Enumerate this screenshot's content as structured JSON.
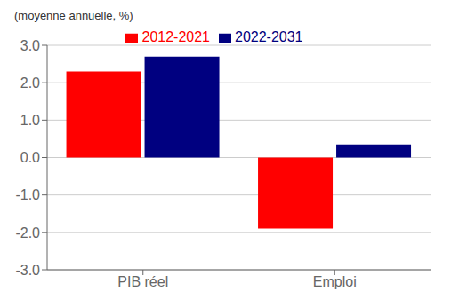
{
  "chart_data": {
    "type": "bar",
    "ylabel": "(moyenne annuelle, %)",
    "categories": [
      "PIB réel",
      "Emploi"
    ],
    "series": [
      {
        "name": "2012-2021",
        "color": "#FF0000",
        "values": [
          2.3,
          -1.9
        ]
      },
      {
        "name": "2022-2031",
        "color": "#000080",
        "values": [
          2.7,
          0.35
        ]
      }
    ],
    "ylim": [
      -3.0,
      3.0
    ],
    "yticks": [
      {
        "value": -3.0,
        "label": "-3.0"
      },
      {
        "value": -2.0,
        "label": "-2.0"
      },
      {
        "value": -1.0,
        "label": "-1.0"
      },
      {
        "value": 0.0,
        "label": "0.0"
      },
      {
        "value": 1.0,
        "label": "1.0"
      },
      {
        "value": 2.0,
        "label": "2.0"
      },
      {
        "value": 3.0,
        "label": "3.0"
      }
    ],
    "grid": true,
    "legend": "top"
  }
}
